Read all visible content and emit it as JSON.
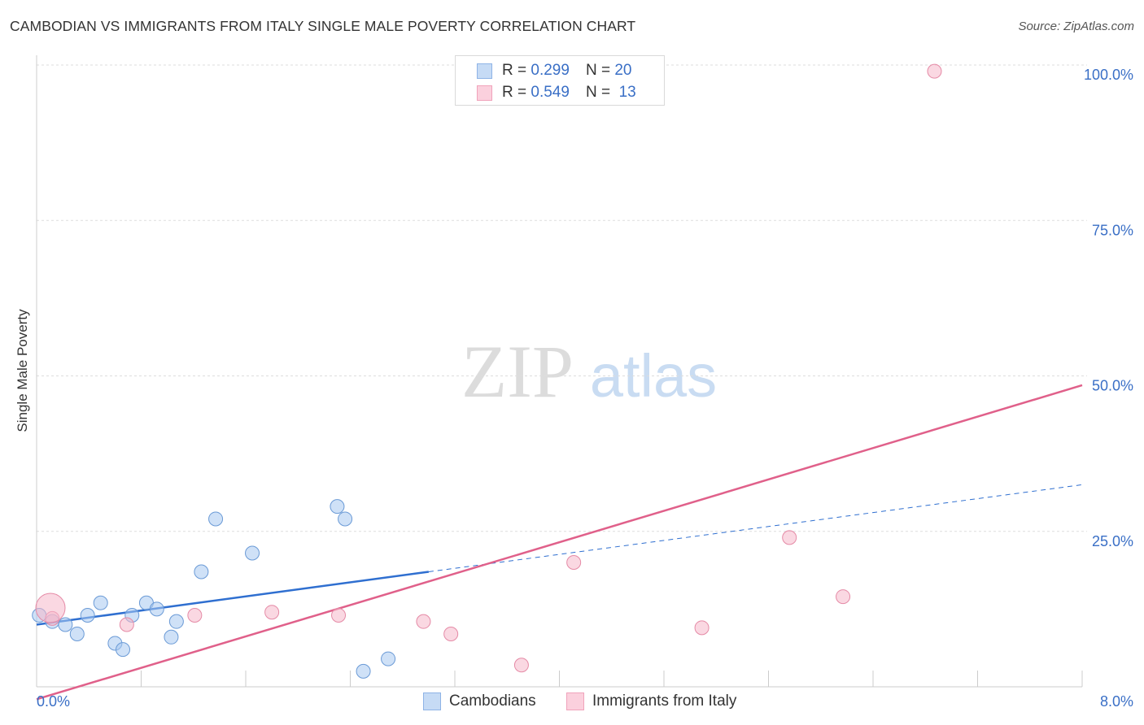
{
  "title": "CAMBODIAN VS IMMIGRANTS FROM ITALY SINGLE MALE POVERTY CORRELATION CHART",
  "source": "Source: ZipAtlas.com",
  "watermark": {
    "zip": "ZIP",
    "atlas": "atlas"
  },
  "legend": [
    {
      "name": "Cambodians",
      "r_label": "R =",
      "r_value": "0.299",
      "n_label": "N =",
      "n_value": "20",
      "color": "#a8c8f0"
    },
    {
      "name": "Immigrants from Italy",
      "r_label": "R =",
      "r_value": "0.549",
      "n_label": "N =",
      "n_value": "13",
      "color": "#f5b8cb"
    }
  ],
  "chart_data": {
    "type": "scatter",
    "title": "CAMBODIAN VS IMMIGRANTS FROM ITALY SINGLE MALE POVERTY CORRELATION CHART",
    "xlabel": "",
    "ylabel": "Single Male Poverty",
    "xlim": [
      0,
      8
    ],
    "ylim": [
      0,
      102
    ],
    "x_tick_labels": [
      "0.0%",
      "8.0%"
    ],
    "y_ticks": [
      {
        "value": 25,
        "label": "25.0%"
      },
      {
        "value": 50,
        "label": "50.0%"
      },
      {
        "value": 75,
        "label": "75.0%"
      },
      {
        "value": 100,
        "label": "100.0%"
      }
    ],
    "grid": "horizontal dashed",
    "series": [
      {
        "name": "Cambodians",
        "color": "#a8c8f0",
        "stroke": "#6a9ad6",
        "points": [
          {
            "x": 0.02,
            "y": 11.5
          },
          {
            "x": 0.12,
            "y": 10.5
          },
          {
            "x": 0.22,
            "y": 10.0
          },
          {
            "x": 0.31,
            "y": 8.5
          },
          {
            "x": 0.39,
            "y": 11.5
          },
          {
            "x": 0.49,
            "y": 13.5
          },
          {
            "x": 0.6,
            "y": 7.0
          },
          {
            "x": 0.66,
            "y": 6.0
          },
          {
            "x": 0.73,
            "y": 11.5
          },
          {
            "x": 0.84,
            "y": 13.5
          },
          {
            "x": 0.92,
            "y": 12.5
          },
          {
            "x": 1.03,
            "y": 8.0
          },
          {
            "x": 1.07,
            "y": 10.5
          },
          {
            "x": 1.26,
            "y": 18.5
          },
          {
            "x": 1.37,
            "y": 27.0
          },
          {
            "x": 1.65,
            "y": 21.5
          },
          {
            "x": 2.3,
            "y": 29.0
          },
          {
            "x": 2.36,
            "y": 27.0
          },
          {
            "x": 2.5,
            "y": 2.5
          },
          {
            "x": 2.69,
            "y": 4.5
          }
        ],
        "trend": {
          "x0": 0,
          "y0": 10.0,
          "x1": 3.0,
          "y1": 18.5,
          "dashed_to_x": 8.0,
          "dashed_to_y": 32.5
        }
      },
      {
        "name": "Immigrants from Italy",
        "color": "#f5b8cb",
        "stroke": "#e58aa6",
        "points": [
          {
            "x": 0.12,
            "y": 11.0
          },
          {
            "x": 0.69,
            "y": 10.0
          },
          {
            "x": 1.21,
            "y": 11.5
          },
          {
            "x": 1.8,
            "y": 12.0
          },
          {
            "x": 2.31,
            "y": 11.5
          },
          {
            "x": 2.96,
            "y": 10.5
          },
          {
            "x": 3.17,
            "y": 8.5
          },
          {
            "x": 3.71,
            "y": 3.5
          },
          {
            "x": 4.11,
            "y": 20.0
          },
          {
            "x": 5.09,
            "y": 9.5
          },
          {
            "x": 5.76,
            "y": 24.0
          },
          {
            "x": 6.17,
            "y": 14.5
          },
          {
            "x": 6.87,
            "y": 99.0
          }
        ],
        "trend": {
          "x0": 0,
          "y0": -2.0,
          "x1": 8.0,
          "y1": 48.5
        }
      }
    ]
  }
}
